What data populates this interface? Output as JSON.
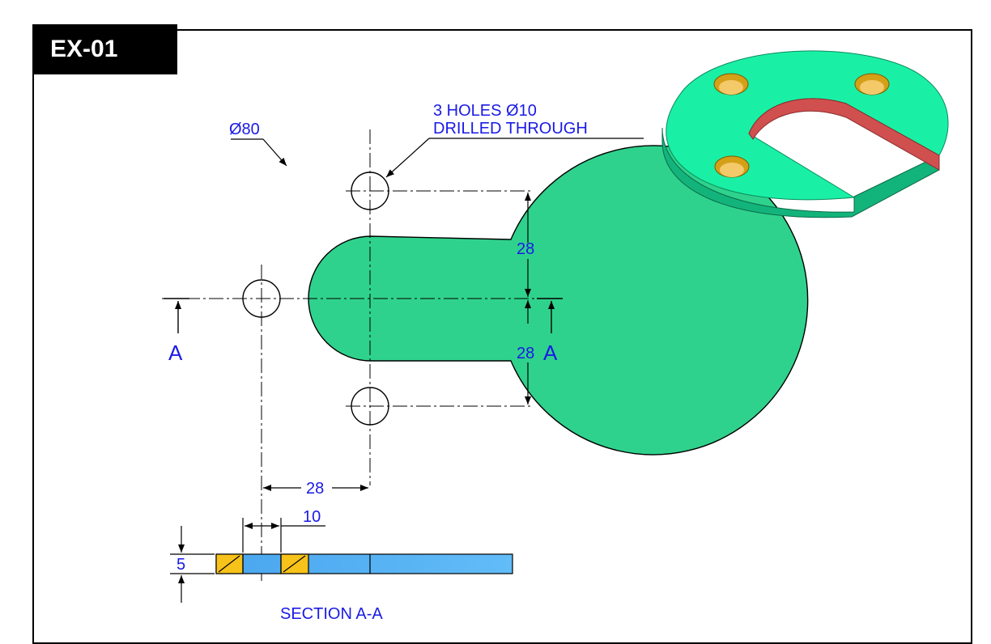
{
  "title": "EX-01",
  "annotations": {
    "diameter": "Ø80",
    "holes_line1": "3 HOLES Ø10",
    "holes_line2": "DRILLED THROUGH",
    "dim_upper": "28",
    "dim_lower": "28",
    "dim_horizontal": "28",
    "dim_counterbore": "10",
    "dim_thickness": "5",
    "section_mark_left": "A",
    "section_mark_right": "A",
    "section_title": "SECTION A-A"
  },
  "colors": {
    "plate": "#2fd28c",
    "iso_top": "#19f0a6",
    "iso_side": "#13b47c",
    "iso_slot": "#d0504f",
    "iso_hole": "#d4a017",
    "section_body": "#55b4f4",
    "section_hatch": "#f7c21a",
    "dimension": "#1a1ae6"
  }
}
